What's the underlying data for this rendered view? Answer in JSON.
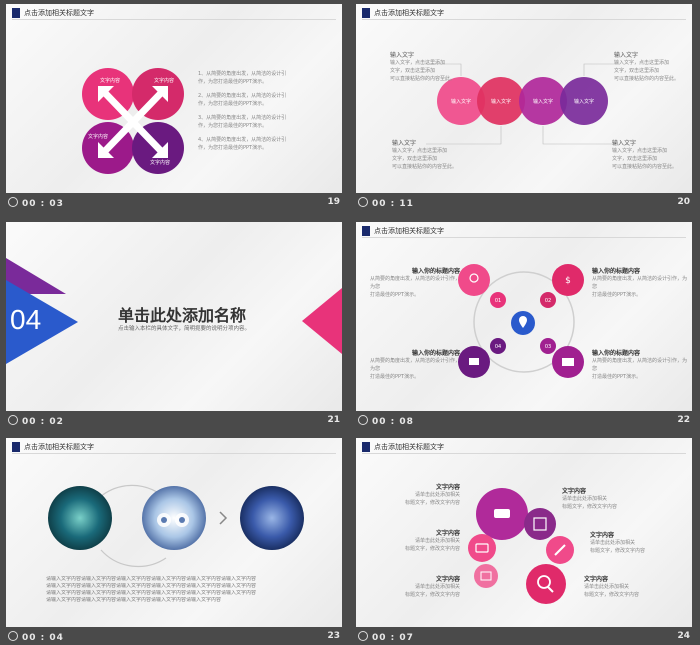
{
  "slides": [
    {
      "header": "点击添加相关标题文字",
      "time": "00 : 03",
      "number": "19",
      "petals": [
        "文字内容",
        "文字内容",
        "文字内容",
        "文字内容"
      ],
      "lines": [
        "1、从简要的角度出发，从简洁的设计引",
        "作，为您打造最佳的PPT演示。",
        "2、从简要的角度出发，从简洁的设计引",
        "作，为您打造最佳的PPT演示。",
        "3、从简要的角度出发，从简洁的设计引",
        "作，为您打造最佳的PPT演示。",
        "4、从简要的角度出发，从简洁的设计引",
        "作，为您打造最佳的PPT演示。"
      ],
      "colors": [
        "#e8337a",
        "#d42a6a",
        "#9c1a8a",
        "#6a1a80"
      ]
    },
    {
      "header": "点击添加相关标题文字",
      "time": "00 : 11",
      "number": "20",
      "circle_label": "输入文字",
      "callout_title": "输入文字",
      "callout_lines": [
        "输入文字，点击这里添加",
        "文字，双击这里添加",
        "可以直接粘贴你的内容至此。"
      ],
      "colors": [
        "#f04a8a",
        "#e0305f",
        "#b0279a",
        "#7a2a9a"
      ]
    },
    {
      "time": "00 : 02",
      "number": "21",
      "section_number": "04",
      "title": "单击此处添加名称",
      "subtitle": "点击输入本栏的具体文字，简明扼要的说明分项内容。"
    },
    {
      "header": "点击添加相关标题文字",
      "time": "00 : 08",
      "number": "22",
      "item_title": "输入你的标题内容",
      "item_lines": [
        "从简要的角度出发，从简洁的设计引作，为您",
        "打造最佳的PPT演示。"
      ],
      "badges": [
        "01",
        "02",
        "03",
        "04"
      ],
      "colors": [
        "#f04a8a",
        "#e02a6a",
        "#a02090",
        "#6a1a80",
        "#2a5acc"
      ]
    },
    {
      "header": "点击添加相关标题文字",
      "time": "00 : 04",
      "number": "23",
      "paragraph": [
        "请输入文字内容请输入文字内容请输入文字内容请输入文字内容请输入文字内容请输入文字内容",
        "请输入文字内容请输入文字内容请输入文字内容请输入文字内容请输入文字内容请输入文字内容",
        "请输入文字内容请输入文字内容请输入文字内容请输入文字内容请输入文字内容请输入文字内容",
        "请输入文字内容请输入文字内容请输入文字内容请输入文字内容请输入文字内容"
      ]
    },
    {
      "header": "点击添加相关标题文字",
      "time": "00 : 07",
      "number": "24",
      "item_title": "文字内容",
      "item_lines": [
        "请单击此处添加相关",
        "标题文字，修改文字内容"
      ],
      "colors": [
        "#b02a9a",
        "#8a2a8a",
        "#f04a8a",
        "#e02a6a",
        "#f070a0"
      ]
    }
  ]
}
